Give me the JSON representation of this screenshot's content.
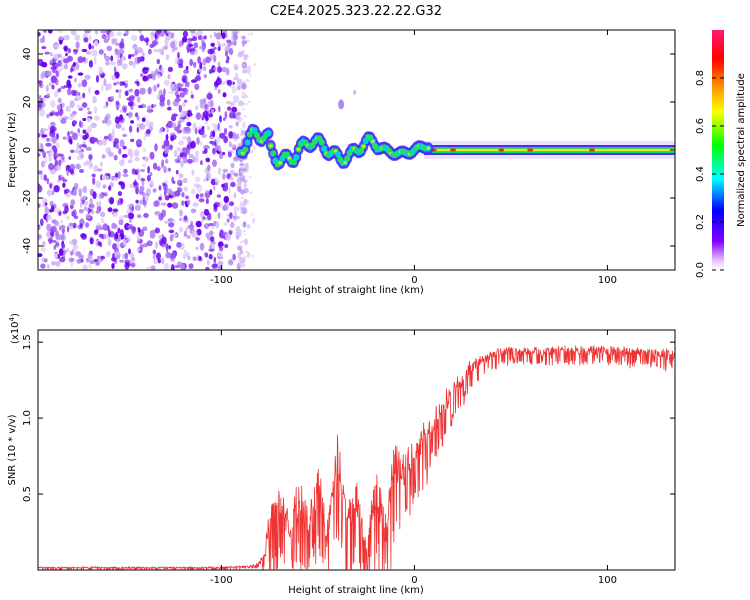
{
  "title": "C2E4.2025.323.22.22.G32",
  "colors": {
    "snr_line": "#ee3333",
    "noise": [
      "#6a00f0",
      "#8a3cf0",
      "#b58af2",
      "#d8c4f6"
    ],
    "axis": "#000000"
  },
  "chart_data": [
    {
      "type": "heatmap",
      "name": "spectrogram",
      "xlabel": "Height of straight line (km)",
      "ylabel": "Frequency (Hz)",
      "xlim": [
        -195,
        135
      ],
      "ylim": [
        -50,
        50
      ],
      "x_ticks": [
        -100,
        0,
        100
      ],
      "x_tick_labels": [
        "-100",
        "0",
        "100"
      ],
      "y_ticks": [
        -40,
        -20,
        0,
        20,
        40
      ],
      "y_tick_labels": [
        "-40",
        "-20",
        "0",
        "20",
        "40"
      ],
      "noise_region_km": [
        -195,
        -90
      ],
      "signal_line_km": [
        -90,
        135
      ],
      "colorbar": {
        "label": "Normalized spectral amplitude",
        "range": [
          0.0,
          1.0
        ],
        "ticks": [
          0.0,
          0.2,
          0.4,
          0.6,
          0.8
        ],
        "tick_labels": [
          "0.0",
          "0.2",
          "0.4",
          "0.6",
          "0.8"
        ],
        "colormap": [
          "#ffffff",
          "#8000ff",
          "#0000ff",
          "#00ffff",
          "#00ff00",
          "#ffff00",
          "#ff8000",
          "#ff0000",
          "#ff0080"
        ]
      }
    },
    {
      "type": "line",
      "name": "snr",
      "xlabel": "Height of straight line (km)",
      "ylabel": "SNR (10 * v/v)",
      "multiplier_label": "(x10",
      "multiplier_exp": "4",
      "multiplier_close": ")",
      "xlim": [
        -195,
        135
      ],
      "ylim": [
        0,
        1.58
      ],
      "x_ticks": [
        -100,
        0,
        100
      ],
      "x_tick_labels": [
        "-100",
        "0",
        "100"
      ],
      "y_ticks": [
        0.5,
        1.0,
        1.5
      ],
      "y_tick_labels": [
        "0.5",
        "1.0",
        "1.5"
      ],
      "series": [
        {
          "name": "SNR",
          "x": [
            -195,
            -150,
            -100,
            -85,
            -80,
            -78,
            -75,
            -70,
            -65,
            -60,
            -55,
            -50,
            -45,
            -40,
            -35,
            -30,
            -25,
            -20,
            -15,
            -10,
            -5,
            0,
            5,
            10,
            15,
            20,
            30,
            40,
            50,
            60,
            80,
            100,
            120,
            135
          ],
          "y": [
            0.02,
            0.02,
            0.02,
            0.03,
            0.06,
            0.12,
            0.38,
            0.55,
            0.35,
            0.6,
            0.4,
            0.7,
            0.3,
            0.88,
            0.45,
            0.6,
            0.25,
            0.7,
            0.4,
            0.85,
            0.75,
            0.85,
            0.95,
            1.05,
            1.15,
            1.25,
            1.38,
            1.45,
            1.47,
            1.46,
            1.48,
            1.47,
            1.46,
            1.45
          ],
          "noise": [
            0.01,
            0.01,
            0.01,
            0.01,
            0.03,
            0.08,
            0.3,
            0.35,
            0.3,
            0.35,
            0.3,
            0.38,
            0.25,
            0.4,
            0.35,
            0.4,
            0.2,
            0.45,
            0.35,
            0.45,
            0.3,
            0.25,
            0.25,
            0.22,
            0.2,
            0.18,
            0.12,
            0.08,
            0.07,
            0.07,
            0.08,
            0.08,
            0.08,
            0.09
          ]
        }
      ]
    }
  ]
}
